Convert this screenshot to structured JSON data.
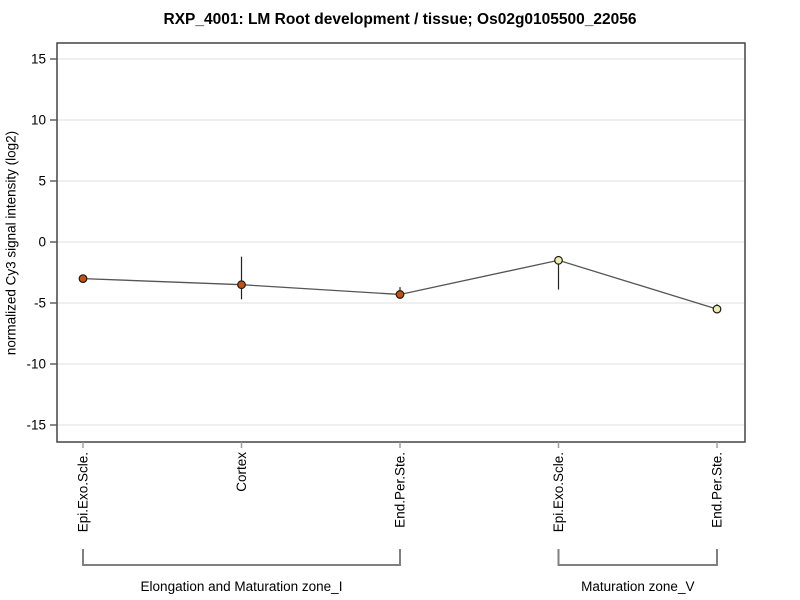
{
  "chart_data": {
    "type": "line",
    "title": "RXP_4001: LM Root development / tissue; Os02g0105500_22056",
    "xlabel": "",
    "ylabel": "normalized Cy3 signal intensity (log2)",
    "ylim": [
      -16.4,
      16.3
    ],
    "yticks": [
      -15,
      -10,
      -5,
      0,
      5,
      10,
      15
    ],
    "grid": true,
    "legend": "none",
    "groups": [
      {
        "label": "Elongation and Maturation zone_I",
        "point_color": "#c8500f",
        "points": [
          {
            "category": "Epi.Exo.Scle.",
            "value": -3.0,
            "err_low": null,
            "err_high": null
          },
          {
            "category": "Cortex",
            "value": -3.5,
            "err_low": -4.7,
            "err_high": -1.2
          },
          {
            "category": "End.Per.Ste.",
            "value": -4.3,
            "err_low": -4.6,
            "err_high": -3.7
          }
        ]
      },
      {
        "label": "Maturation zone_V",
        "point_color": "#eeeeaa",
        "points": [
          {
            "category": "Epi.Exo.Scle.",
            "value": -1.5,
            "err_low": -3.9,
            "err_high": -1.2
          },
          {
            "category": "End.Per.Ste.",
            "value": -5.5,
            "err_low": -5.8,
            "err_high": -5.1
          }
        ]
      }
    ],
    "colors": {
      "line": "#555555",
      "error_bar": "#222222",
      "marker_stroke": "#1a1a1a",
      "grid": "#e5e5e5",
      "axis": "#444444",
      "y_tick": "#555555",
      "x_tick": "#999999",
      "bracket": "#808080",
      "text": "#000000"
    }
  }
}
